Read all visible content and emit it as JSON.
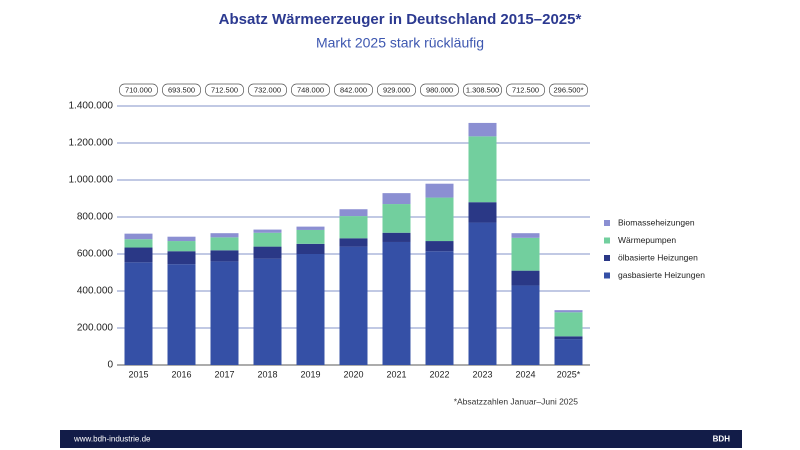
{
  "chart_data": {
    "type": "stacked_bar",
    "title": "Absatz Wärmeerzeuger in Deutschland 2015–2025*",
    "subtitle": "Markt 2025 stark rückläufig",
    "categories": [
      "2015",
      "2016",
      "2017",
      "2018",
      "2019",
      "2020",
      "2021",
      "2022",
      "2023",
      "2024",
      "2025*"
    ],
    "series": [
      {
        "name": "gasbasierte Heizungen",
        "color": "#3550a6",
        "values": [
          555000,
          545000,
          560000,
          575000,
          600000,
          640000,
          665000,
          615000,
          770000,
          430000,
          140000
        ]
      },
      {
        "name": "ölbasierte Heizungen",
        "color": "#2a3886",
        "values": [
          80000,
          70000,
          60000,
          65000,
          55000,
          45000,
          50000,
          55000,
          110000,
          80000,
          15000
        ]
      },
      {
        "name": "Wärmepumpen",
        "color": "#72cf9e",
        "values": [
          45000,
          55000,
          70000,
          75000,
          75000,
          120000,
          155000,
          235000,
          356000,
          177500,
          130000
        ]
      },
      {
        "name": "Biomasseheizungen",
        "color": "#8b8fd2",
        "values": [
          30000,
          23500,
          22500,
          17000,
          18000,
          37000,
          59000,
          75000,
          72500,
          25000,
          11500
        ]
      }
    ],
    "totals": {
      "values": [
        710000,
        693500,
        712500,
        732000,
        748000,
        842000,
        929000,
        980000,
        1308500,
        712500,
        296500
      ],
      "value_labels": [
        "710.000",
        "693.500",
        "712.500",
        "732.000",
        "748.000",
        "842.000",
        "929.000",
        "980.000",
        "1.308.500",
        "712.500",
        "296.500*"
      ]
    },
    "ylim": [
      0,
      1400000
    ],
    "yticks": [
      0,
      {
        "value": 200000,
        "label": "200.000"
      },
      {
        "value": 400000,
        "label": "400.000"
      },
      {
        "value": 600000,
        "label": "600.000"
      },
      {
        "value": 800000,
        "label": "800.000"
      },
      {
        "value": 1000000,
        "label": "1.000.000"
      },
      {
        "value": 1200000,
        "label": "1.200.000"
      },
      {
        "value": 1400000,
        "label": "1.400.000"
      }
    ],
    "grid": true,
    "legend": "right",
    "footnote": "*Absatzzahlen Januar–Juni 2025"
  },
  "footer": {
    "url": "www.bdh-industrie.de",
    "brand": "BDH"
  }
}
